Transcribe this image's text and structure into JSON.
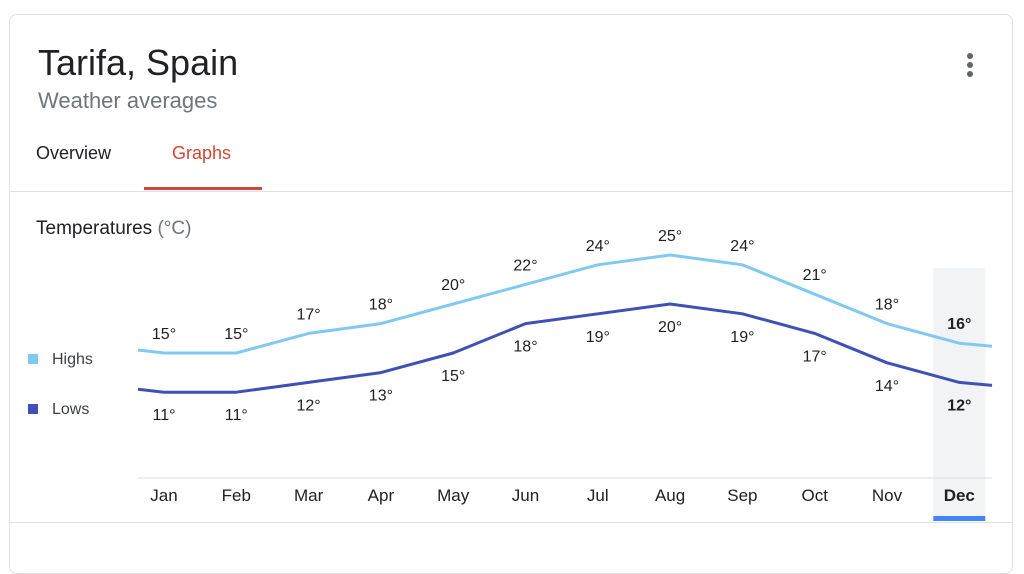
{
  "header": {
    "title": "Tarifa, Spain",
    "subtitle": "Weather averages"
  },
  "tabs": [
    {
      "label": "Overview",
      "active": false
    },
    {
      "label": "Graphs",
      "active": true
    }
  ],
  "section": {
    "title": "Temperatures",
    "unit": "(°C)"
  },
  "legend": {
    "highs": "Highs",
    "lows": "Lows"
  },
  "colors": {
    "highs": "#81c9f2",
    "lows": "#3f51b5",
    "accent": "#d14836",
    "selected_bar": "#4285f4"
  },
  "chart_data": {
    "type": "line",
    "categories": [
      "Jan",
      "Feb",
      "Mar",
      "Apr",
      "May",
      "Jun",
      "Jul",
      "Aug",
      "Sep",
      "Oct",
      "Nov",
      "Dec"
    ],
    "series": [
      {
        "name": "Highs",
        "values": [
          15,
          15,
          17,
          18,
          20,
          22,
          24,
          25,
          24,
          21,
          18,
          16
        ]
      },
      {
        "name": "Lows",
        "values": [
          11,
          11,
          12,
          13,
          15,
          18,
          19,
          20,
          19,
          17,
          14,
          12
        ]
      }
    ],
    "data_label_suffix": "°",
    "selected_category": "Dec",
    "grid": false,
    "legend_position": "left"
  },
  "icons": {
    "menu": "more-vert-icon"
  }
}
